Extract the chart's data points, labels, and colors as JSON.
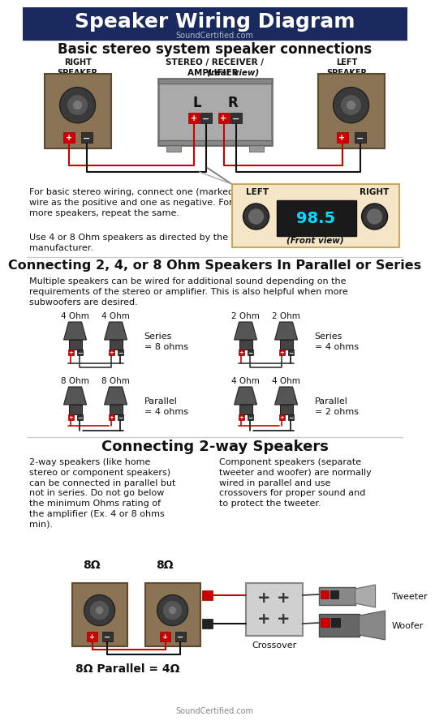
{
  "title": "Speaker Wiring Diagram",
  "subtitle": "SoundCertified.com",
  "header_bg": "#1a2a5e",
  "header_text_color": "#ffffff",
  "body_bg": "#ffffff",
  "section1_title": "Basic stereo system speaker connections",
  "section1_text1": "For basic stereo wiring, connect one (marked)\nwire as the positive and one as negative. For\nmore speakers, repeat the same.",
  "section1_text2": "Use 4 or 8 Ohm speakers as directed by the\nmanufacturer.",
  "section2_title": "Connecting 2, 4, or 8 Ohm Speakers In Parallel or Series",
  "section2_text": "Multiple speakers can be wired for additional sound depending on the\nrequirements of the stereo or amplifier. This is also helpful when more\nsubwoofers are desired.",
  "section3_title": "Connecting 2-way Speakers",
  "section3_text_left": "2-way speakers (like home\nstereo or component speakers)\ncan be connected in parallel but\nnot in series. Do not go below\nthe minimum Ohms rating of\nthe amplifier (Ex. 4 or 8 ohms\nmin).",
  "section3_text_right": "Component speakers (separate\ntweeter and woofer) are normally\nwired in parallel and use\ncrossovers for proper sound and\nto protect the tweeter.",
  "footer_text": "SoundCertified.com",
  "speaker_color": "#8B7355",
  "speaker_edge": "#5a4a30",
  "amp_color": "#aaaaaa",
  "red_terminal": "#cc0000",
  "black_terminal": "#333333",
  "wire_red": "#cc0000",
  "wire_black": "#111111",
  "front_view_label": "(Front view)",
  "left_label": "LEFT",
  "right_label": "RIGHT",
  "radio_display": "98.5",
  "tweeter_label": "Tweeter",
  "woofer_label": "Woofer",
  "crossover_label": "Crossover",
  "parallel_eq_label": "8Ω Parallel = 4Ω",
  "right_speaker_label": "RIGHT\nSPEAKER",
  "left_speaker_label": "LEFT\nSPEAKER",
  "divider_color": "#cccccc",
  "cone_color": "#555555",
  "callout_bg": "#f5e6c8",
  "callout_border": "#c8a860"
}
